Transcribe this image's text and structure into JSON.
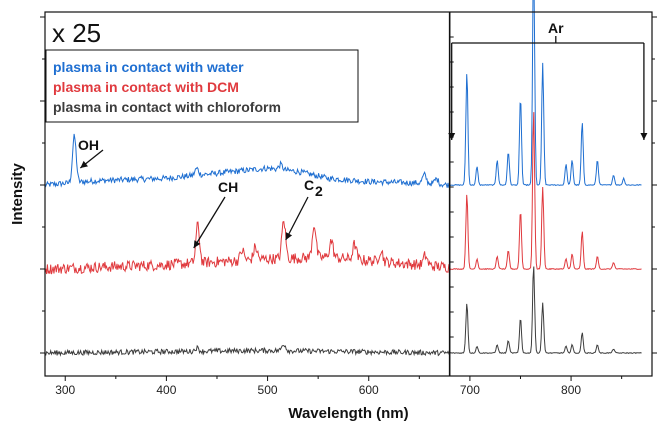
{
  "chart_data": {
    "type": "line",
    "xlabel": "Wavelength (nm)",
    "ylabel": "Intensity",
    "xlim": [
      280,
      880
    ],
    "xticks": [
      300,
      400,
      500,
      600,
      700,
      800
    ],
    "yaxis_values_shown": false,
    "grid": false,
    "legend_placement": "top-left",
    "divider_x": 680,
    "scale_label": "x 25",
    "series": [
      {
        "name": "plasma in contact with water",
        "color": "#1f6fd1",
        "offset": 2.0,
        "baseline_points": [
          [
            280,
            0.0
          ],
          [
            300,
            0.02
          ],
          [
            330,
            0.05
          ],
          [
            400,
            0.08
          ],
          [
            450,
            0.14
          ],
          [
            500,
            0.2
          ],
          [
            530,
            0.16
          ],
          [
            560,
            0.08
          ],
          [
            600,
            0.04
          ],
          [
            660,
            0.02
          ],
          [
            680,
            0.0
          ]
        ],
        "peaks": [
          [
            309,
            0.55
          ],
          [
            430,
            0.08
          ],
          [
            513,
            0.06
          ],
          [
            655,
            0.1
          ],
          [
            667,
            0.06
          ],
          [
            697,
            1.35
          ],
          [
            707,
            0.22
          ],
          [
            727,
            0.3
          ],
          [
            738,
            0.4
          ],
          [
            750,
            1.05
          ],
          [
            763,
            2.75
          ],
          [
            772,
            1.45
          ],
          [
            795,
            0.25
          ],
          [
            801,
            0.3
          ],
          [
            811,
            0.75
          ],
          [
            826,
            0.3
          ],
          [
            842,
            0.12
          ],
          [
            852,
            0.08
          ]
        ],
        "noise": 0.035
      },
      {
        "name": "plasma in contact with DCM",
        "color": "#e03a3e",
        "offset": 1.0,
        "baseline_points": [
          [
            280,
            0.0
          ],
          [
            400,
            0.05
          ],
          [
            500,
            0.12
          ],
          [
            560,
            0.14
          ],
          [
            620,
            0.08
          ],
          [
            680,
            0.02
          ]
        ],
        "peaks": [
          [
            431,
            0.45
          ],
          [
            475,
            0.12
          ],
          [
            488,
            0.15
          ],
          [
            516,
            0.45
          ],
          [
            546,
            0.4
          ],
          [
            563,
            0.2
          ],
          [
            586,
            0.18
          ],
          [
            612,
            0.14
          ],
          [
            656,
            0.12
          ],
          [
            697,
            0.9
          ],
          [
            707,
            0.12
          ],
          [
            727,
            0.15
          ],
          [
            738,
            0.22
          ],
          [
            750,
            0.7
          ],
          [
            763,
            1.9
          ],
          [
            772,
            0.98
          ],
          [
            795,
            0.12
          ],
          [
            801,
            0.18
          ],
          [
            811,
            0.45
          ],
          [
            826,
            0.15
          ],
          [
            842,
            0.08
          ]
        ],
        "noise": 0.065
      },
      {
        "name": "plasma in contact with chloroform",
        "color": "#3d3d3d",
        "offset": 0.0,
        "baseline_points": [
          [
            280,
            0.0
          ],
          [
            500,
            0.03
          ],
          [
            680,
            0.0
          ]
        ],
        "peaks": [
          [
            430,
            0.04
          ],
          [
            516,
            0.08
          ],
          [
            697,
            0.6
          ],
          [
            707,
            0.08
          ],
          [
            727,
            0.1
          ],
          [
            738,
            0.15
          ],
          [
            750,
            0.42
          ],
          [
            763,
            1.05
          ],
          [
            772,
            0.6
          ],
          [
            795,
            0.08
          ],
          [
            801,
            0.1
          ],
          [
            811,
            0.25
          ],
          [
            826,
            0.1
          ],
          [
            842,
            0.05
          ]
        ],
        "noise": 0.03
      }
    ],
    "annotations": [
      {
        "text": "OH",
        "x": 309,
        "series": 0
      },
      {
        "text": "CH",
        "x": 431,
        "series": 1
      },
      {
        "text": "C",
        "subscript": "2",
        "x": 516,
        "series": 1
      },
      {
        "text": "Ar",
        "bracket_from": 682,
        "bracket_to": 872
      }
    ]
  }
}
